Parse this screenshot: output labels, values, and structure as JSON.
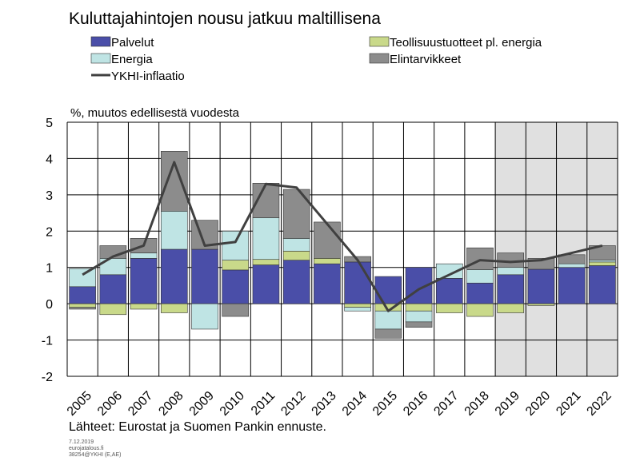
{
  "chart_data": {
    "type": "bar",
    "title": "Kuluttajahintojen nousu jatkuu maltillisena",
    "ylabel": "%, muutos edellisestä vuodesta",
    "ylim": [
      -2,
      5
    ],
    "yticks": [
      -2,
      -1,
      0,
      1,
      2,
      3,
      4,
      5
    ],
    "categories": [
      "2005",
      "2006",
      "2007",
      "2008",
      "2009",
      "2010",
      "2011",
      "2012",
      "2013",
      "2014",
      "2015",
      "2016",
      "2017",
      "2018",
      "2019",
      "2020",
      "2021",
      "2022"
    ],
    "forecast_categories": [
      "2019",
      "2020",
      "2021",
      "2022"
    ],
    "forecast_shade_color": "#e0e0e0",
    "legend_placement": "top-left",
    "series": [
      {
        "name": "Palvelut",
        "kind": "bar",
        "color": "#4a4ea8",
        "values": [
          0.47,
          0.8,
          1.25,
          1.5,
          1.5,
          0.93,
          1.07,
          1.2,
          1.1,
          1.15,
          0.75,
          1.0,
          0.7,
          0.57,
          0.8,
          0.95,
          1.0,
          1.05
        ]
      },
      {
        "name": "Teollisuustuotteet pl. energia",
        "kind": "bar",
        "color": "#c9d98a",
        "values": [
          -0.1,
          -0.3,
          -0.15,
          -0.25,
          0.0,
          0.27,
          0.15,
          0.25,
          0.15,
          -0.1,
          -0.2,
          -0.2,
          -0.25,
          -0.35,
          -0.25,
          -0.05,
          0.0,
          0.1
        ]
      },
      {
        "name": "Energia",
        "kind": "bar",
        "color": "#bfe4e4",
        "values": [
          0.5,
          0.45,
          0.15,
          1.05,
          -0.7,
          0.8,
          1.15,
          0.35,
          0.0,
          -0.1,
          -0.5,
          -0.3,
          0.4,
          0.37,
          0.2,
          0.0,
          0.1,
          0.05
        ]
      },
      {
        "name": "Elintarvikkeet",
        "kind": "bar",
        "color": "#8c8c8c",
        "values": [
          -0.05,
          0.35,
          0.4,
          1.65,
          0.8,
          -0.35,
          0.95,
          1.35,
          1.0,
          0.15,
          -0.25,
          -0.15,
          0.0,
          0.6,
          0.4,
          0.3,
          0.25,
          0.4
        ]
      },
      {
        "name": "YKHI-inflaatio",
        "kind": "line",
        "color": "#404040",
        "values": [
          0.8,
          1.3,
          1.6,
          3.9,
          1.6,
          1.7,
          3.3,
          3.2,
          2.2,
          1.2,
          -0.2,
          0.4,
          0.8,
          1.2,
          1.15,
          1.2,
          1.4,
          1.6
        ]
      }
    ]
  },
  "source_text": "Lähteet: Eurostat ja Suomen Pankin ennuste.",
  "footnote": [
    "7.12.2019",
    "eurojatalous.fi",
    "38254@YKHI   (E,AE)"
  ]
}
